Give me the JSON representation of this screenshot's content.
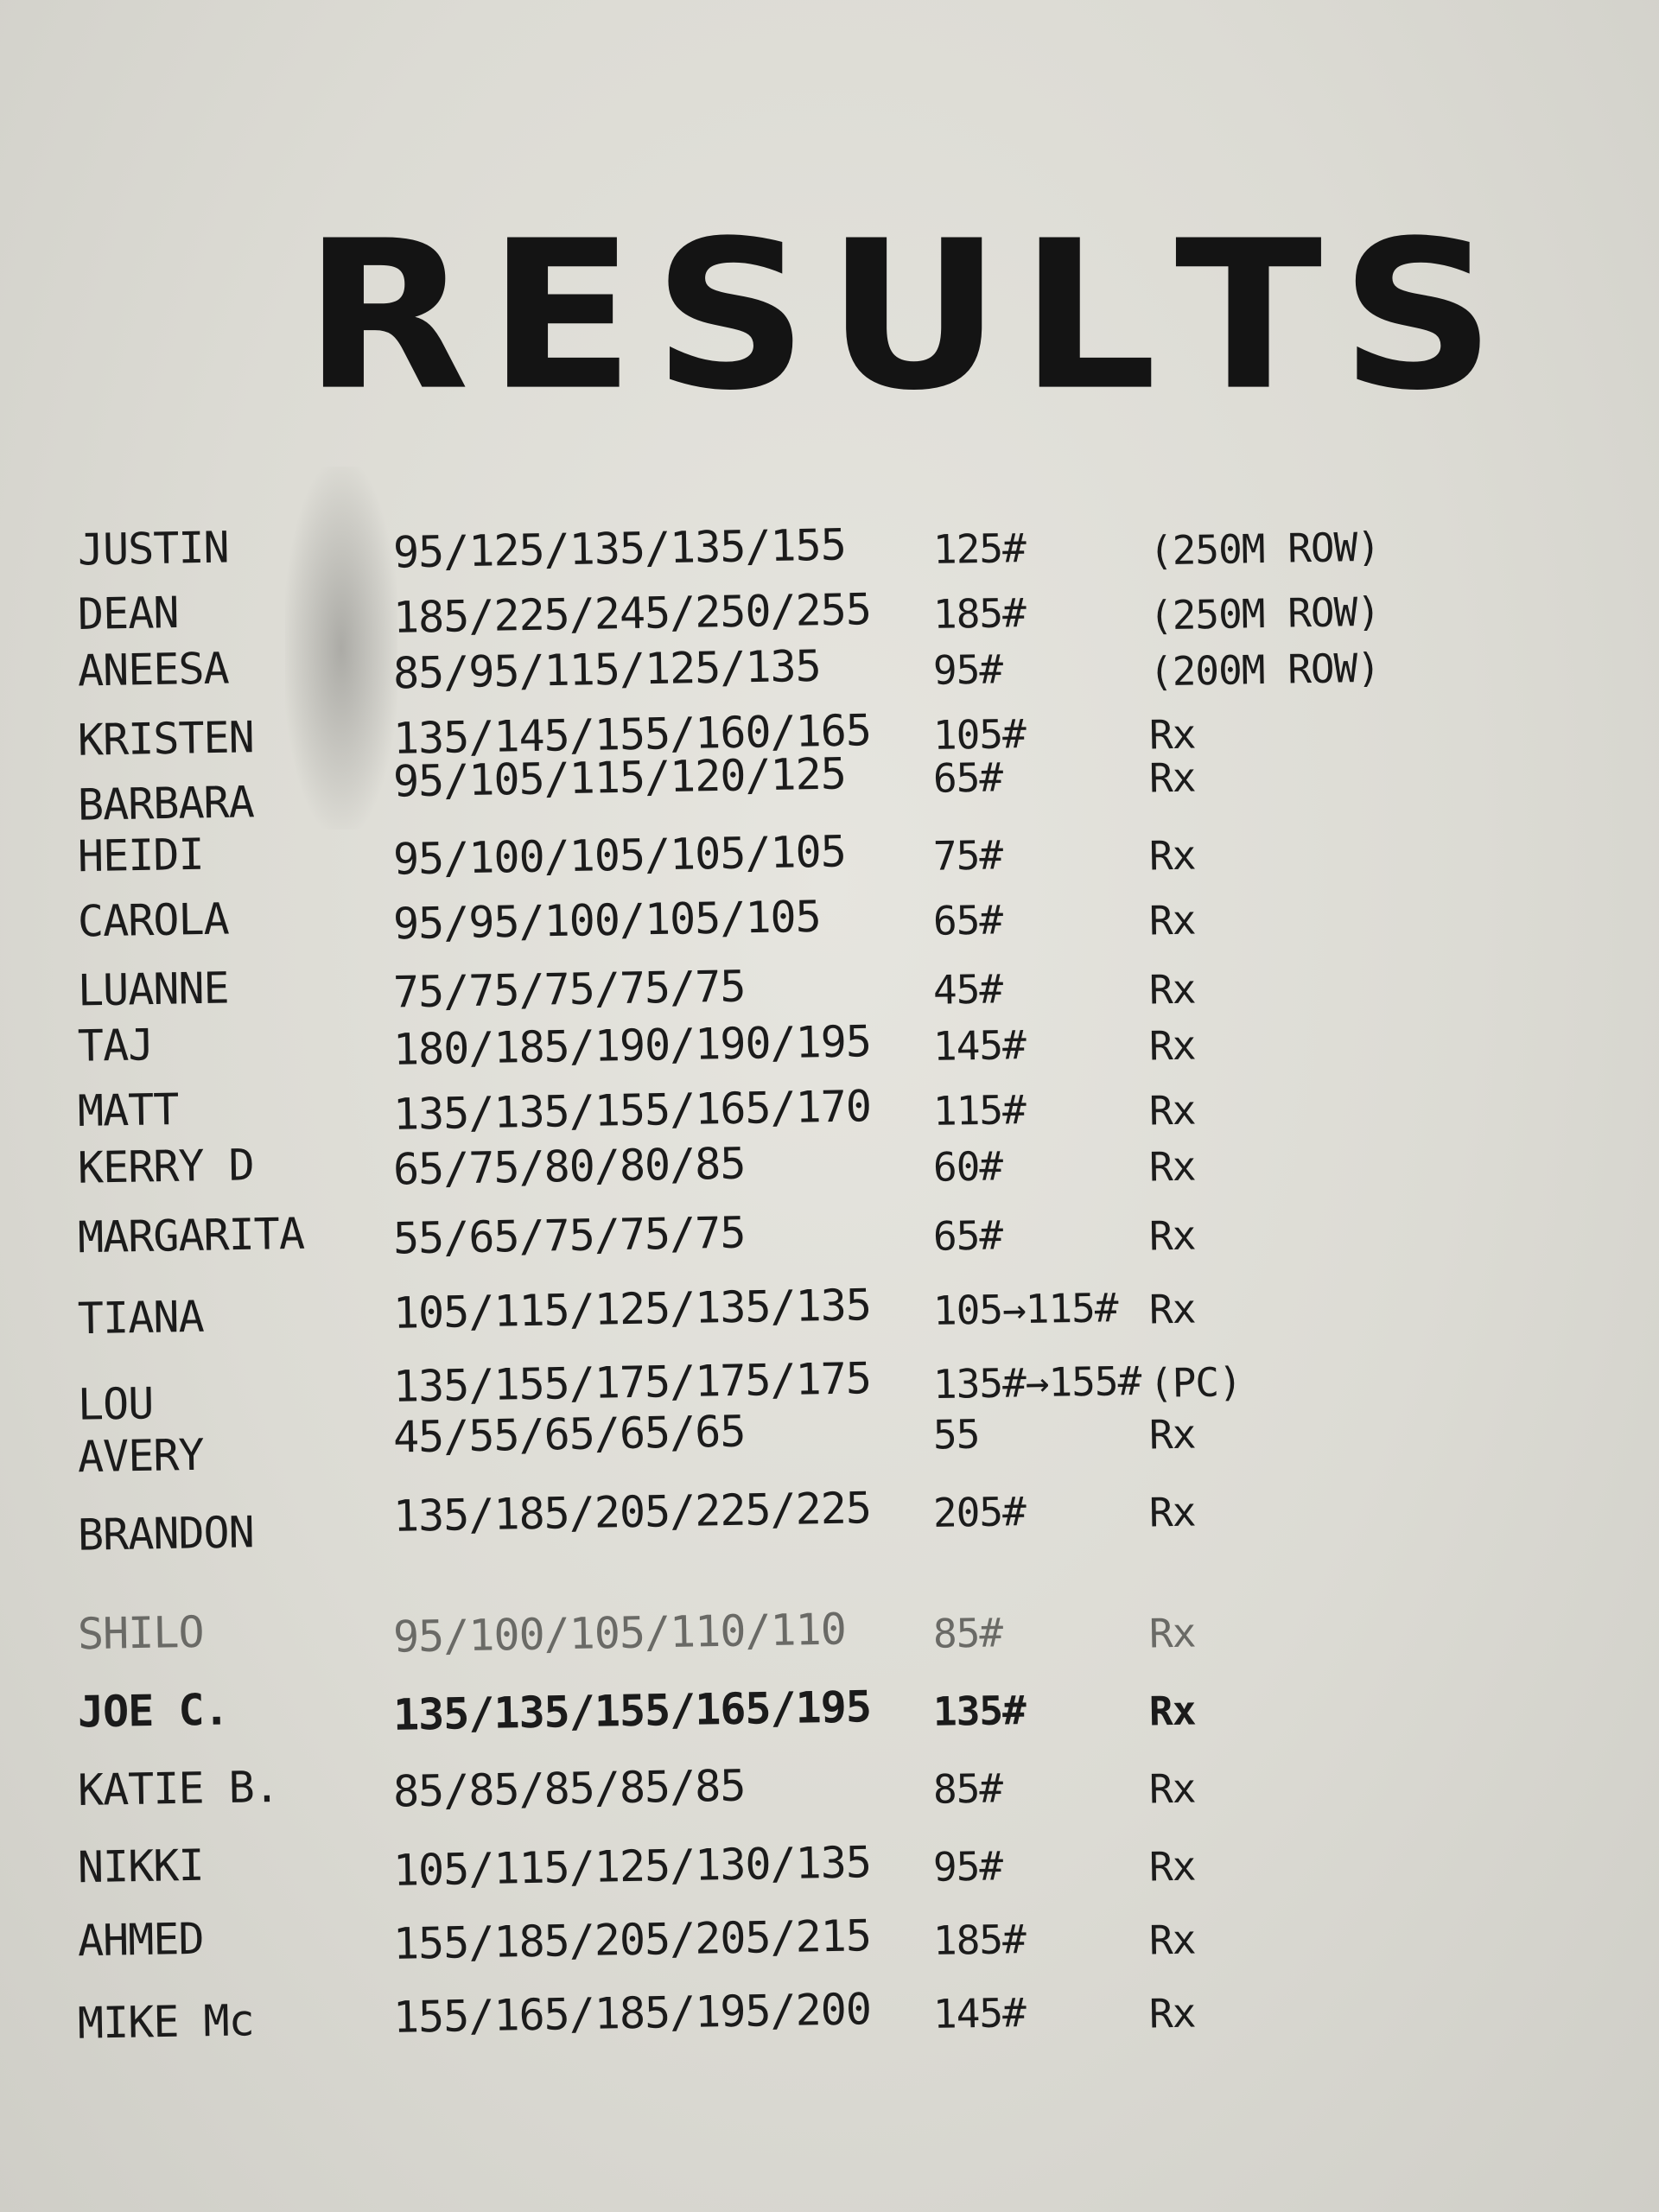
{
  "board": {
    "title": "RESULTS",
    "rows": [
      {
        "name": "JUSTIN",
        "weights": "95/125/135/135/155",
        "best": "125#",
        "note": "(250M ROW)"
      },
      {
        "name": "DEAN",
        "weights": "185/225/245/250/255",
        "best": "185#",
        "note": "(250M ROW)"
      },
      {
        "name": "ANEESA",
        "weights": "85/95/115/125/135",
        "best": "95#",
        "note": "(200M ROW)"
      },
      {
        "name": "KRISTEN",
        "weights": "135/145/155/160/165",
        "best": "105#",
        "note": "Rx"
      },
      {
        "name": "BARBARA",
        "weights": "95/105/115/120/125",
        "best": "65#",
        "note": "Rx"
      },
      {
        "name": "HEIDI",
        "weights": "95/100/105/105/105",
        "best": "75#",
        "note": "Rx"
      },
      {
        "name": "CAROLA",
        "weights": "95/95/100/105/105",
        "best": "65#",
        "note": "Rx"
      },
      {
        "name": "LUANNE",
        "weights": "75/75/75/75/75",
        "best": "45#",
        "note": "Rx"
      },
      {
        "name": "TAJ",
        "weights": "180/185/190/190/195",
        "best": "145#",
        "note": "Rx"
      },
      {
        "name": "MATT",
        "weights": "135/135/155/165/170",
        "best": "115#",
        "note": "Rx"
      },
      {
        "name": "KERRY D",
        "weights": "65/75/80/80/85",
        "best": "60#",
        "note": "Rx"
      },
      {
        "name": "MARGARITA",
        "weights": "55/65/75/75/75",
        "best": "65#",
        "note": "Rx"
      },
      {
        "name": "TIANA",
        "weights": "105/115/125/135/135",
        "best": "105→115#",
        "note": "Rx"
      },
      {
        "name": "LOU",
        "weights": "135/155/175/175/175",
        "best": "135#→155#",
        "note": "(PC)"
      },
      {
        "name": "AVERY",
        "weights": "45/55/65/65/65",
        "best": "55",
        "note": "Rx"
      },
      {
        "name": "BRANDON",
        "weights": "135/185/205/225/225",
        "best": "205#",
        "note": "Rx"
      },
      {
        "name": "SHILO",
        "weights": "95/100/105/110/110",
        "best": "85#",
        "note": "Rx"
      },
      {
        "name": "JOE C.",
        "weights": "135/135/155/165/195",
        "best": "135#",
        "note": "Rx"
      },
      {
        "name": "KATIE B.",
        "weights": "85/85/85/85/85",
        "best": "85#",
        "note": "Rx"
      },
      {
        "name": "NIKKI",
        "weights": "105/115/125/130/135",
        "best": "95#",
        "note": "Rx"
      },
      {
        "name": "AHMED",
        "weights": "155/185/205/205/215",
        "best": "185#",
        "note": "Rx"
      },
      {
        "name": "MIKE Mc",
        "weights": "155/165/185/195/200",
        "best": "145#",
        "note": "Rx"
      }
    ]
  }
}
